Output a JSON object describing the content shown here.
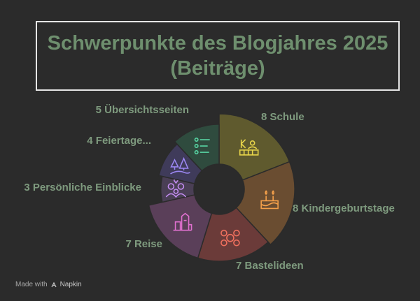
{
  "title": "Schwerpunkte des Blogjahres 2025\n(Beiträge)",
  "chart_data": {
    "type": "pie",
    "style": "donut",
    "title": "Schwerpunkte des Blogjahres 2025 (Beiträge)",
    "categories": [
      "Schule",
      "Kindergeburtstage",
      "Bastelideen",
      "Reise",
      "Persönliche Einblicke",
      "Feiertage...",
      "Übersichtsseiten"
    ],
    "values": [
      8,
      8,
      7,
      7,
      3,
      4,
      5
    ],
    "labels": [
      "8 Schule",
      "8 Kindergeburtstage",
      "7 Bastelideen",
      "7 Reise",
      "3 Persönliche Einblicke",
      "4 Feiertage...",
      "5 Übersichtsseiten"
    ],
    "colors": [
      "#5f5a2e",
      "#6a4d31",
      "#6b3b39",
      "#5a3f59",
      "#4a3f55",
      "#3f3b5a",
      "#2f4b3e"
    ],
    "icon_colors": [
      "#e8d54a",
      "#f4a04a",
      "#f0705e",
      "#e070d0",
      "#c28cf0",
      "#9a86f0",
      "#58d6a4"
    ],
    "icons": [
      "school-icon",
      "birthday-cake-icon",
      "craft-hands-icon",
      "travel-landmark-icon",
      "family-icon",
      "winter-holiday-icon",
      "list-icon"
    ],
    "legend": "none"
  },
  "footer": {
    "made_with": "Made with",
    "brand": "Napkin"
  }
}
